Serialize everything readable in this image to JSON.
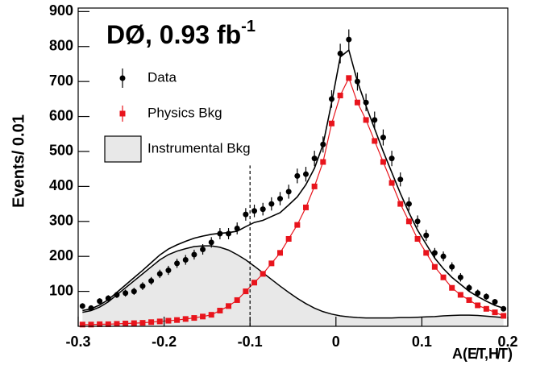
{
  "chart_data": {
    "type": "histogram_fit",
    "annotation": {
      "text": "DØ, 0.93 fb",
      "sup": "-1"
    },
    "x_label": "A(E̸T,H̸T)",
    "y_label": "Events/ 0.01",
    "x": [
      -0.295,
      -0.285,
      -0.275,
      -0.265,
      -0.255,
      -0.245,
      -0.235,
      -0.225,
      -0.215,
      -0.205,
      -0.195,
      -0.185,
      -0.175,
      -0.165,
      -0.155,
      -0.145,
      -0.135,
      -0.125,
      -0.115,
      -0.105,
      -0.095,
      -0.085,
      -0.075,
      -0.065,
      -0.055,
      -0.045,
      -0.035,
      -0.025,
      -0.015,
      -0.005,
      0.005,
      0.015,
      0.025,
      0.035,
      0.045,
      0.055,
      0.065,
      0.075,
      0.085,
      0.095,
      0.105,
      0.115,
      0.125,
      0.135,
      0.145,
      0.155,
      0.165,
      0.175,
      0.185,
      0.195
    ],
    "series": [
      {
        "name": "Data",
        "color": "#000000",
        "style": "points",
        "values": [
          58,
          52,
          72,
          80,
          90,
          95,
          100,
          115,
          130,
          150,
          160,
          180,
          190,
          205,
          220,
          240,
          265,
          265,
          280,
          320,
          330,
          335,
          350,
          365,
          385,
          430,
          435,
          480,
          520,
          650,
          780,
          820,
          700,
          640,
          590,
          540,
          480,
          420,
          350,
          300,
          260,
          210,
          200,
          170,
          140,
          110,
          95,
          85,
          70,
          50
        ],
        "errors": [
          8,
          7,
          8,
          9,
          9,
          10,
          10,
          11,
          11,
          12,
          13,
          13,
          14,
          14,
          15,
          15,
          16,
          16,
          17,
          18,
          18,
          18,
          19,
          19,
          20,
          21,
          21,
          22,
          23,
          25,
          28,
          29,
          26,
          25,
          24,
          23,
          22,
          20,
          19,
          17,
          16,
          14,
          14,
          13,
          12,
          10,
          10,
          9,
          8,
          7
        ]
      },
      {
        "name": "Physics Bkg",
        "color": "#e8141c",
        "style": "squares",
        "values": [
          5,
          5,
          6,
          6,
          7,
          8,
          9,
          10,
          12,
          14,
          16,
          18,
          21,
          24,
          28,
          33,
          45,
          58,
          75,
          100,
          125,
          150,
          180,
          210,
          250,
          290,
          340,
          400,
          470,
          580,
          660,
          710,
          640,
          590,
          530,
          470,
          410,
          350,
          300,
          250,
          210,
          170,
          140,
          110,
          90,
          75,
          60,
          50,
          40,
          30
        ]
      },
      {
        "name": "Instrumental Bkg",
        "color": "#e8e8e8",
        "style": "area",
        "values": [
          40,
          45,
          55,
          70,
          90,
          110,
          130,
          150,
          170,
          190,
          205,
          215,
          222,
          228,
          230,
          230,
          226,
          218,
          205,
          190,
          172,
          153,
          134,
          115,
          97,
          80,
          65,
          52,
          42,
          35,
          30,
          27,
          25,
          24,
          24,
          24,
          24,
          25,
          25,
          26,
          27,
          28,
          30,
          31,
          32,
          32,
          31,
          29,
          27,
          25
        ]
      },
      {
        "color": "#000000",
        "style": "line",
        "values": [
          45,
          50,
          61,
          76,
          97,
          118,
          139,
          160,
          182,
          204,
          221,
          233,
          243,
          252,
          258,
          263,
          266,
          268,
          272,
          285,
          297,
          303,
          314,
          325,
          347,
          370,
          405,
          452,
          520,
          640,
          770,
          790,
          700,
          630,
          565,
          500,
          440,
          380,
          325,
          275,
          235,
          195,
          165,
          140,
          120,
          100,
          85,
          72,
          60,
          52
        ]
      }
    ],
    "cut_line": {
      "x": -0.1,
      "top": 460
    },
    "xlim": [
      -0.3,
      0.2
    ],
    "xticks": [
      -0.3,
      -0.2,
      -0.1,
      0,
      0.1,
      0.2
    ],
    "ylim": [
      0,
      910
    ],
    "yticks": [
      100,
      200,
      300,
      400,
      500,
      600,
      700,
      800,
      900
    ]
  }
}
